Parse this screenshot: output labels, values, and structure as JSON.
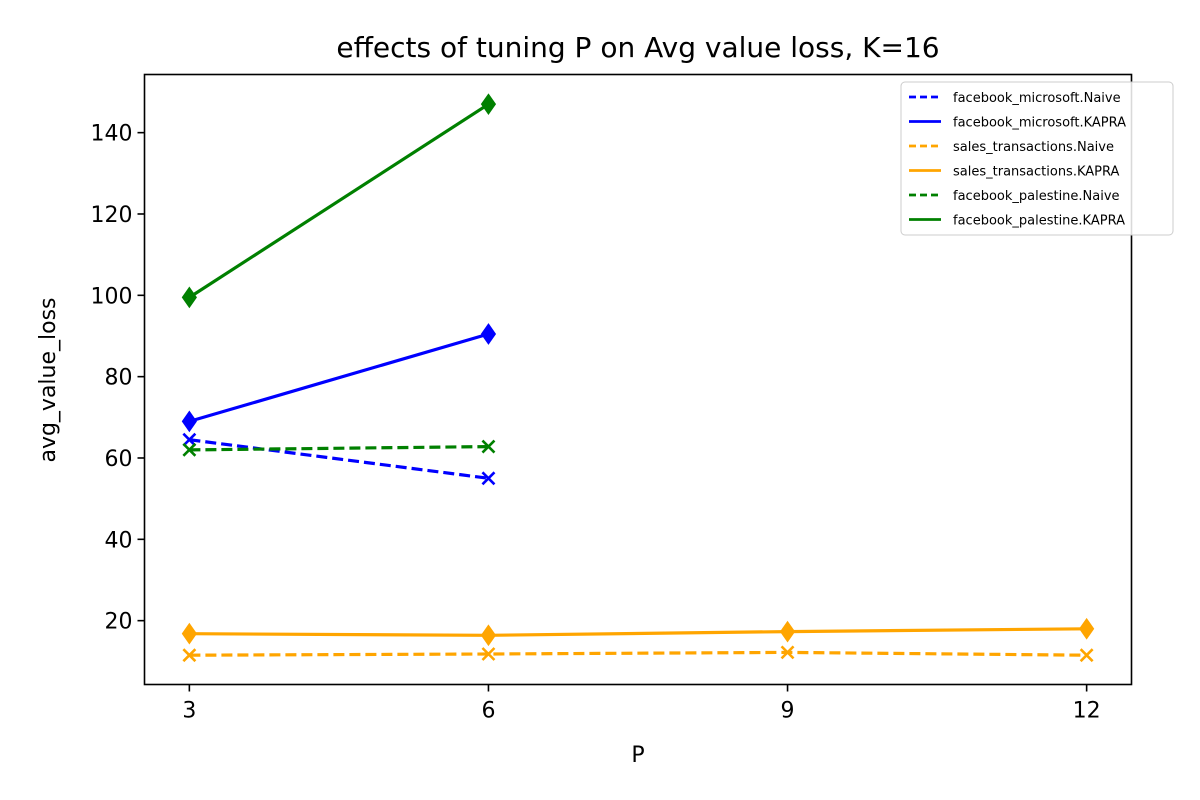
{
  "chart_data": {
    "type": "line",
    "title": "effects of tuning P on Avg value loss, K=16",
    "xlabel": "P",
    "ylabel": "avg_value_loss",
    "x_ticks": [
      3,
      6,
      9,
      12
    ],
    "y_ticks": [
      20,
      40,
      60,
      80,
      100,
      120,
      140
    ],
    "xlim": [
      2.55,
      12.45
    ],
    "ylim": [
      4.3,
      154.3
    ],
    "grid": false,
    "legend_position": "top-right",
    "series": [
      {
        "name": "facebook_microsoft.Naive",
        "color": "#0000ff",
        "linestyle": "dashed",
        "marker": "x",
        "x": [
          3,
          6
        ],
        "y": [
          64.5,
          55.0
        ]
      },
      {
        "name": "facebook_microsoft.KAPRA",
        "color": "#0000ff",
        "linestyle": "solid",
        "marker": "diamond",
        "x": [
          3,
          6
        ],
        "y": [
          69.0,
          90.5
        ]
      },
      {
        "name": "sales_transactions.Naive",
        "color": "#ffa500",
        "linestyle": "dashed",
        "marker": "x",
        "x": [
          3,
          6,
          9,
          12
        ],
        "y": [
          11.5,
          11.8,
          12.2,
          11.5
        ]
      },
      {
        "name": "sales_transactions.KAPRA",
        "color": "#ffa500",
        "linestyle": "solid",
        "marker": "diamond",
        "x": [
          3,
          6,
          9,
          12
        ],
        "y": [
          16.8,
          16.4,
          17.3,
          18.0
        ]
      },
      {
        "name": "facebook_palestine.Naive",
        "color": "#008000",
        "linestyle": "dashed",
        "marker": "x",
        "x": [
          3,
          6
        ],
        "y": [
          62.0,
          62.8
        ]
      },
      {
        "name": "facebook_palestine.KAPRA",
        "color": "#008000",
        "linestyle": "solid",
        "marker": "diamond",
        "x": [
          3,
          6
        ],
        "y": [
          99.5,
          147.0
        ]
      }
    ]
  }
}
